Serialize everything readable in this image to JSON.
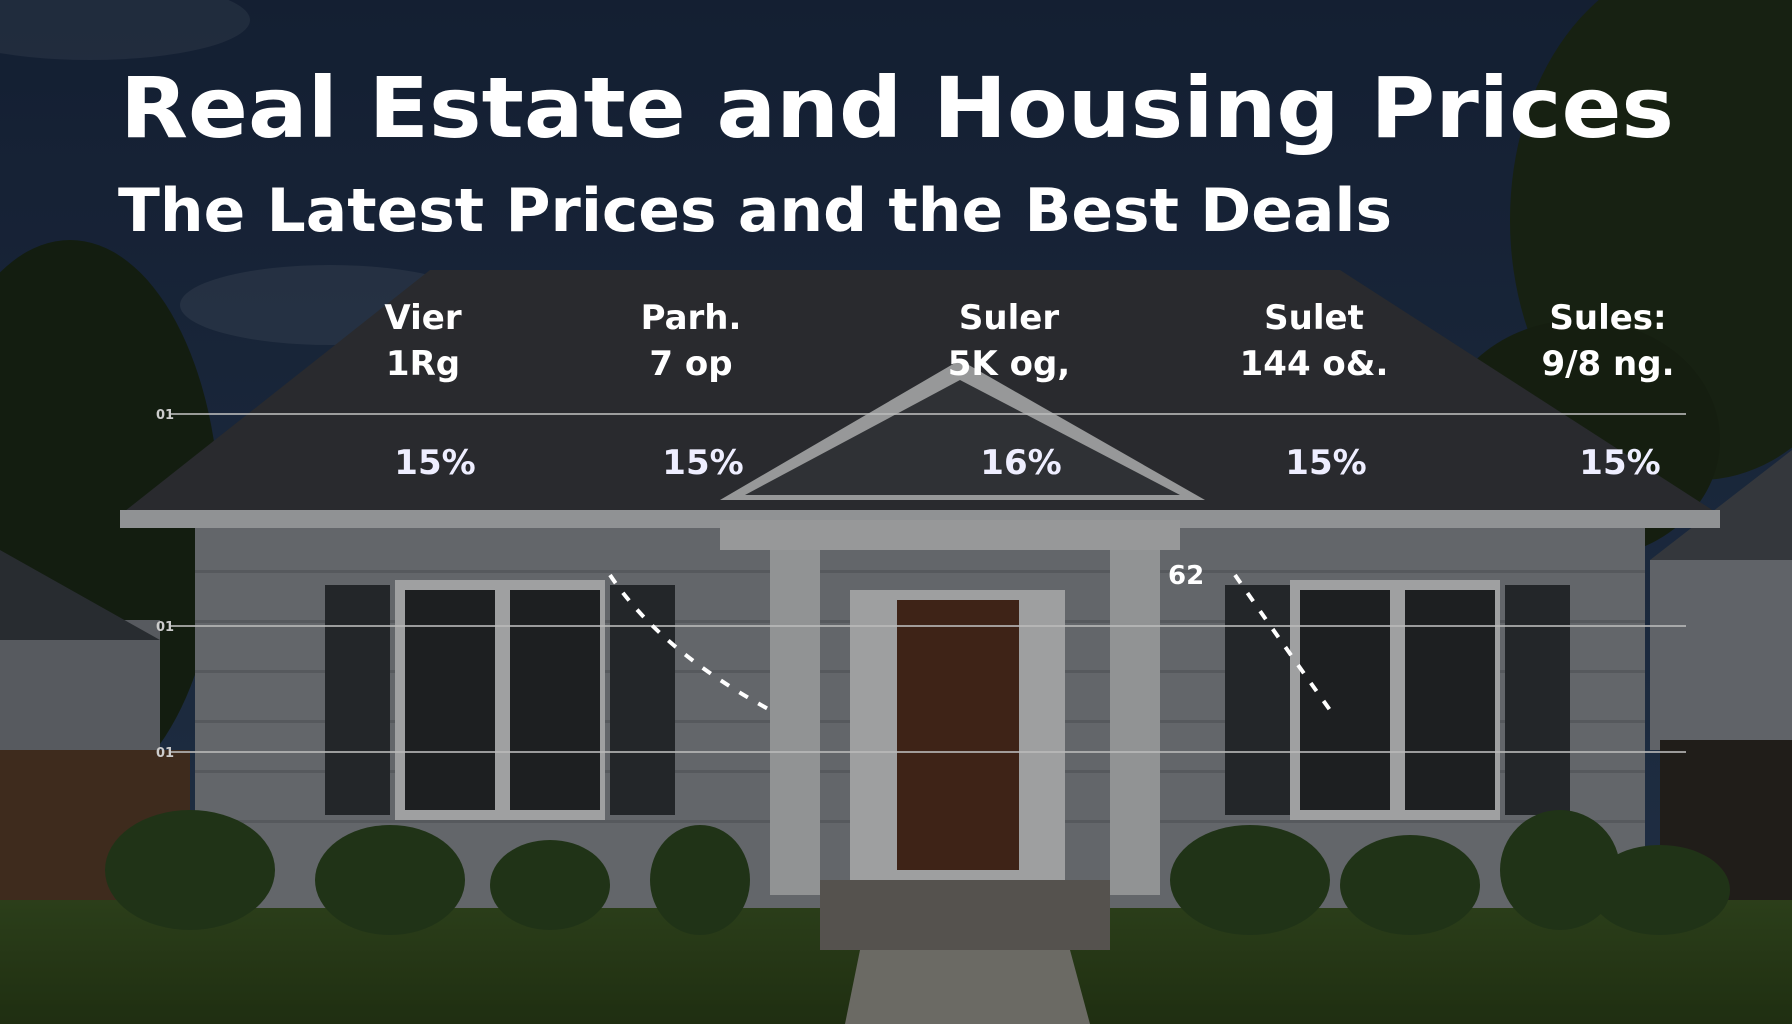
{
  "header": {
    "title": "Real Estate and Housing Prices",
    "subtitle": "The Latest Prices and the Best Deals"
  },
  "columns": [
    {
      "name": "Vier",
      "value": "1Rg",
      "change": "15%"
    },
    {
      "name": "Parh.",
      "value": "7 op",
      "change": "15%"
    },
    {
      "name": "Suler",
      "value": "5K og,",
      "change": "16%"
    },
    {
      "name": "Sulet",
      "value": "144 o&.",
      "change": "15%"
    },
    {
      "name": "Sules:",
      "value": "9/8 ng.",
      "change": "15%"
    }
  ],
  "line_labels": [
    "01",
    "01",
    "01"
  ],
  "annotations": [
    "62"
  ]
}
